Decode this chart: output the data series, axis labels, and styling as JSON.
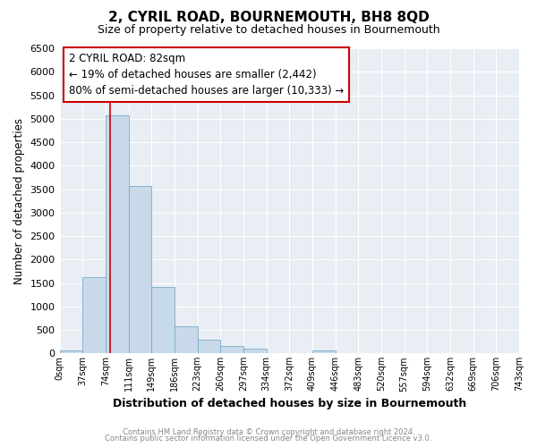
{
  "title": "2, CYRIL ROAD, BOURNEMOUTH, BH8 8QD",
  "subtitle": "Size of property relative to detached houses in Bournemouth",
  "xlabel": "Distribution of detached houses by size in Bournemouth",
  "ylabel": "Number of detached properties",
  "bar_color": "#c8daea",
  "bar_edge_color": "#7aaac8",
  "bin_edges": [
    0,
    37,
    74,
    111,
    148,
    185,
    222,
    259,
    296,
    333,
    370,
    407,
    444,
    481,
    518,
    555,
    592,
    629,
    666,
    703,
    740
  ],
  "bin_labels": [
    "0sqm",
    "37sqm",
    "74sqm",
    "111sqm",
    "149sqm",
    "186sqm",
    "223sqm",
    "260sqm",
    "297sqm",
    "334sqm",
    "372sqm",
    "409sqm",
    "446sqm",
    "483sqm",
    "520sqm",
    "557sqm",
    "594sqm",
    "632sqm",
    "669sqm",
    "706sqm",
    "743sqm"
  ],
  "counts": [
    60,
    1620,
    5080,
    3570,
    1420,
    580,
    300,
    150,
    100,
    0,
    0,
    65,
    0,
    0,
    0,
    0,
    0,
    0,
    0,
    0
  ],
  "ylim": [
    0,
    6500
  ],
  "yticks": [
    0,
    500,
    1000,
    1500,
    2000,
    2500,
    3000,
    3500,
    4000,
    4500,
    5000,
    5500,
    6000,
    6500
  ],
  "vline_x": 82,
  "vline_color": "#cc0000",
  "annotation_title": "2 CYRIL ROAD: 82sqm",
  "annotation_line1": "← 19% of detached houses are smaller (2,442)",
  "annotation_line2": "80% of semi-detached houses are larger (10,333) →",
  "annotation_box_color": "#ffffff",
  "annotation_box_edge": "#cc0000",
  "footer1": "Contains HM Land Registry data © Crown copyright and database right 2024.",
  "footer2": "Contains public sector information licensed under the Open Government Licence v3.0.",
  "fig_background": "#ffffff",
  "plot_background": "#e8eef4",
  "grid_color": "#ffffff",
  "title_fontsize": 11,
  "subtitle_fontsize": 9
}
